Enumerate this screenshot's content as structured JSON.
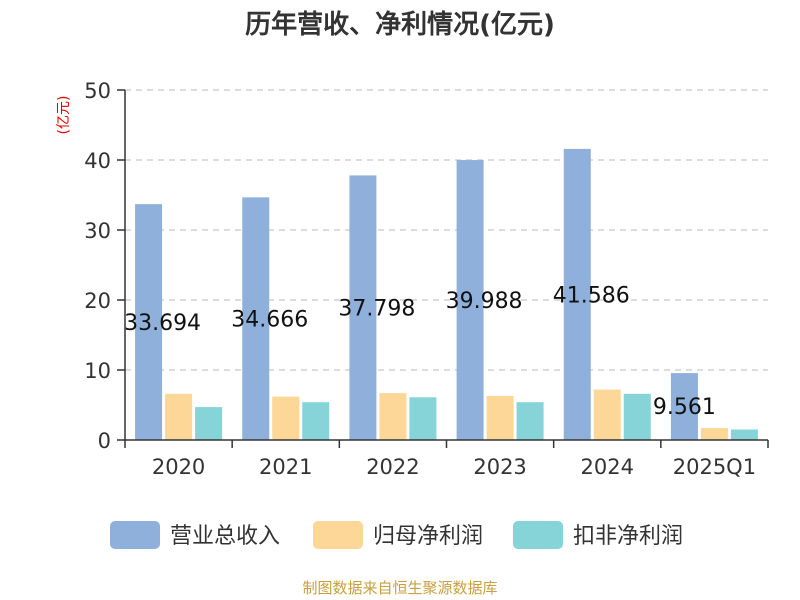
{
  "chart_data": {
    "type": "bar",
    "title": "历年营收、净利情况(亿元)",
    "ylabel": "(亿元)",
    "ylim": [
      0,
      50
    ],
    "yticks": [
      0,
      10,
      20,
      30,
      40,
      50
    ],
    "grid": true,
    "legend_position": "bottom",
    "categories": [
      "2020",
      "2021",
      "2022",
      "2023",
      "2024",
      "2025Q1"
    ],
    "series": [
      {
        "name": "营业总收入",
        "color": "#8eb0db",
        "values": [
          33.694,
          34.666,
          37.798,
          39.988,
          41.586,
          9.561
        ]
      },
      {
        "name": "归母净利润",
        "color": "#fdd797",
        "values": [
          6.6,
          6.2,
          6.7,
          6.3,
          7.2,
          1.7
        ]
      },
      {
        "name": "扣非净利润",
        "color": "#86d3d8",
        "values": [
          4.7,
          5.4,
          6.1,
          5.4,
          6.6,
          1.5
        ]
      }
    ],
    "data_labels": [
      "33.694",
      "34.666",
      "37.798",
      "39.988",
      "41.586",
      "9.561"
    ]
  },
  "source": "制图数据来自恒生聚源数据库"
}
